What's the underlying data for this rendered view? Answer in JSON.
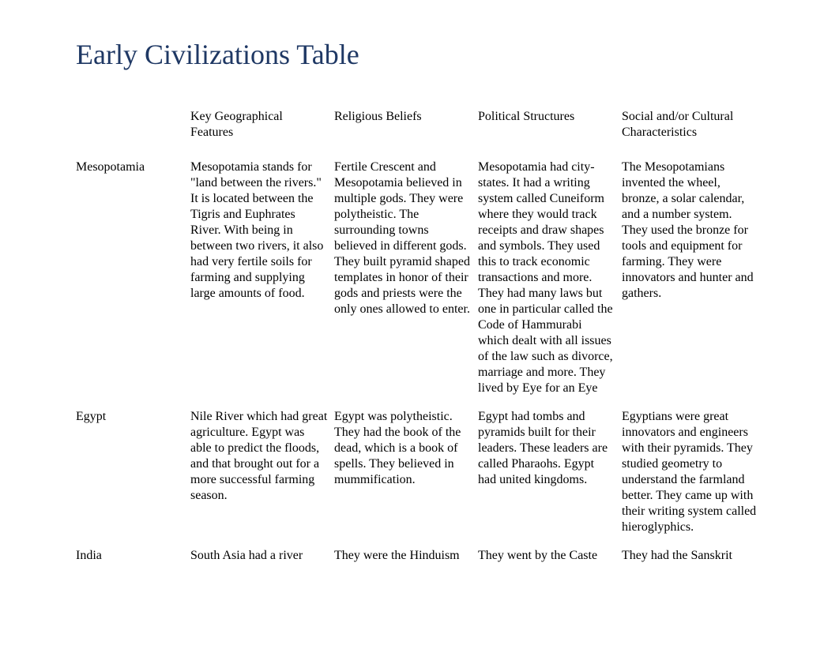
{
  "title": "Early Civilizations Table",
  "title_color": "#1f3864",
  "title_fontsize": 36,
  "body_fontsize": 16,
  "body_color": "#000000",
  "background_color": "#ffffff",
  "table": {
    "columns": [
      "",
      "Key Geographical Features",
      "Religious Beliefs",
      "Political Structures",
      "Social and/or Cultural Characteristics"
    ],
    "rows": [
      {
        "civ": "Mesopotamia",
        "geo": "Mesopotamia stands for \"land between the rivers.\" It is located between the Tigris and Euphrates River. With being in between two rivers, it also had very fertile soils for farming and supplying large amounts of food.",
        "religion": "Fertile Crescent and Mesopotamia believed in multiple gods. They were polytheistic. The surrounding towns believed in different gods. They built pyramid shaped templates in honor of their gods and priests were the only ones allowed to enter.",
        "political": "Mesopotamia had city-states. It had a writing system called Cuneiform where they would track receipts and draw shapes and symbols. They used this to track economic transactions and more. They had many laws but one in particular called the Code of Hammurabi which dealt with all issues of the law such as divorce, marriage and more. They lived by Eye for an Eye",
        "social": "The Mesopotamians invented the wheel, bronze, a solar calendar, and a number system. They used the bronze for tools and equipment for farming. They were innovators and hunter and gathers."
      },
      {
        "civ": "Egypt",
        "geo": "Nile River which had great agriculture. Egypt was able to predict the floods, and that brought out for a more successful farming season.",
        "religion": "Egypt was polytheistic. They had the book of the dead, which is a book of spells. They believed in mummification.",
        "political": "Egypt had tombs and pyramids built for their leaders. These leaders are called Pharaohs. Egypt had united kingdoms.",
        "social": "Egyptians were great innovators and engineers with their pyramids. They studied geometry to understand the farmland better. They came up with their writing system called hieroglyphics."
      },
      {
        "civ": "India",
        "geo": "South Asia had a river",
        "religion": "They were the Hinduism",
        "political": "They went by the Caste",
        "social": "They had the Sanskrit"
      }
    ]
  }
}
